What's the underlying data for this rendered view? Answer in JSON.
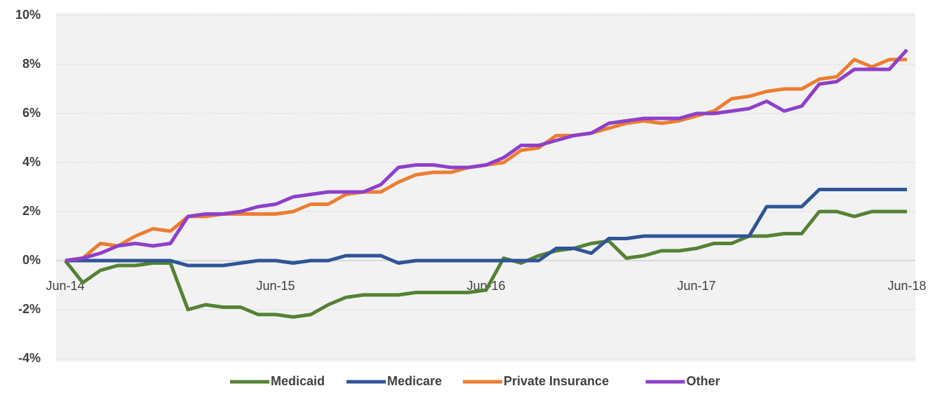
{
  "chart_data": {
    "type": "line",
    "categories": [
      "Jun-14",
      null,
      null,
      null,
      null,
      null,
      null,
      null,
      null,
      null,
      null,
      null,
      "Jun-15",
      null,
      null,
      null,
      null,
      null,
      null,
      null,
      null,
      null,
      null,
      null,
      "Jun-16",
      null,
      null,
      null,
      null,
      null,
      null,
      null,
      null,
      null,
      null,
      null,
      "Jun-17",
      null,
      null,
      null,
      null,
      null,
      null,
      null,
      null,
      null,
      null,
      null,
      "Jun-18"
    ],
    "series": [
      {
        "name": "Medicaid",
        "color": "#548235",
        "values": [
          0,
          -0.9,
          -0.4,
          -0.2,
          -0.2,
          -0.1,
          -0.1,
          -2.0,
          -1.8,
          -1.9,
          -1.9,
          -2.2,
          -2.2,
          -2.3,
          -2.2,
          -1.8,
          -1.5,
          -1.4,
          -1.4,
          -1.4,
          -1.3,
          -1.3,
          -1.3,
          -1.3,
          -1.2,
          0.1,
          -0.1,
          0.2,
          0.4,
          0.5,
          0.7,
          0.8,
          0.1,
          0.2,
          0.4,
          0.4,
          0.5,
          0.7,
          0.7,
          1.0,
          1.0,
          1.1,
          1.1,
          2.0,
          2.0,
          1.8,
          2.0,
          2.0,
          2.0
        ]
      },
      {
        "name": "Medicare",
        "color": "#2f5597",
        "values": [
          0,
          0,
          0,
          0,
          0,
          0,
          0,
          -0.2,
          -0.2,
          -0.2,
          -0.1,
          0,
          0,
          -0.1,
          0,
          0,
          0.2,
          0.2,
          0.2,
          -0.1,
          0,
          0,
          0,
          0,
          0,
          0,
          0,
          0,
          0.5,
          0.5,
          0.3,
          0.9,
          0.9,
          1.0,
          1.0,
          1.0,
          1.0,
          1.0,
          1.0,
          1.0,
          2.2,
          2.2,
          2.2,
          2.9,
          2.9,
          2.9,
          2.9,
          2.9,
          2.9
        ]
      },
      {
        "name": "Private Insurance",
        "color": "#ed7d31",
        "values": [
          0,
          0.1,
          0.7,
          0.6,
          1.0,
          1.3,
          1.2,
          1.8,
          1.8,
          1.9,
          1.9,
          1.9,
          1.9,
          2.0,
          2.3,
          2.3,
          2.7,
          2.8,
          2.8,
          3.2,
          3.5,
          3.6,
          3.6,
          3.8,
          3.9,
          4.0,
          4.5,
          4.6,
          5.1,
          5.1,
          5.2,
          5.4,
          5.6,
          5.7,
          5.6,
          5.7,
          5.9,
          6.1,
          6.6,
          6.7,
          6.9,
          7.0,
          7.0,
          7.4,
          7.5,
          8.2,
          7.9,
          8.2,
          8.2
        ]
      },
      {
        "name": "Other",
        "color": "#8f3fc9",
        "values": [
          0,
          0.1,
          0.3,
          0.6,
          0.7,
          0.6,
          0.7,
          1.8,
          1.9,
          1.9,
          2.0,
          2.2,
          2.3,
          2.6,
          2.7,
          2.8,
          2.8,
          2.8,
          3.1,
          3.8,
          3.9,
          3.9,
          3.8,
          3.8,
          3.9,
          4.2,
          4.7,
          4.7,
          4.9,
          5.1,
          5.2,
          5.6,
          5.7,
          5.8,
          5.8,
          5.8,
          6.0,
          6.0,
          6.1,
          6.2,
          6.5,
          6.1,
          6.3,
          7.2,
          7.3,
          7.8,
          7.8,
          7.8,
          8.6
        ]
      }
    ],
    "ylim": [
      -4,
      10
    ],
    "yticks": [
      {
        "value": -4,
        "label": "-4%"
      },
      {
        "value": -2,
        "label": "-2%"
      },
      {
        "value": 0,
        "label": "0%"
      },
      {
        "value": 2,
        "label": "2%"
      },
      {
        "value": 4,
        "label": "4%"
      },
      {
        "value": 6,
        "label": "6%"
      },
      {
        "value": 8,
        "label": "8%"
      },
      {
        "value": 10,
        "label": "10%"
      }
    ],
    "grid": true,
    "legend": "bottom"
  }
}
